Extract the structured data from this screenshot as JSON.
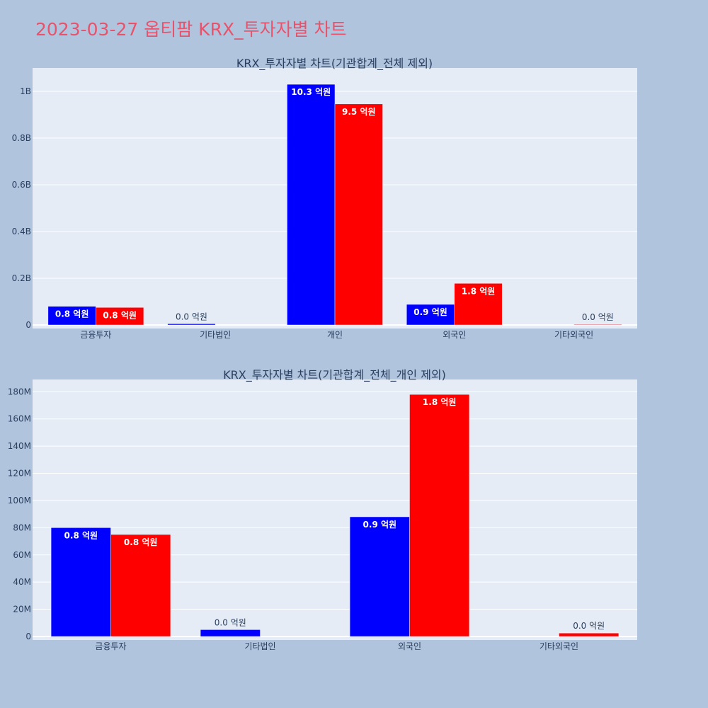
{
  "page": {
    "title": "2023-03-27 옵티팜 KRX_투자자별 차트"
  },
  "colors": {
    "background": "#b0c4de",
    "plot_bg": "#e5ecf6",
    "grid": "#ffffff",
    "title": "#e8536b",
    "text": "#2a3f5f",
    "series_a": "#0000ff",
    "series_b": "#ff0000"
  },
  "chart_data": [
    {
      "type": "bar",
      "title": "KRX_투자자별 차트(기관합계_전체 제외)",
      "categories": [
        "금융투자",
        "기타법인",
        "개인",
        "외국인",
        "기타외국인"
      ],
      "ylim": [
        0,
        1100000000
      ],
      "yticks": [
        0,
        200000000,
        400000000,
        600000000,
        800000000,
        1000000000
      ],
      "ytick_labels": [
        "0",
        "0.2B",
        "0.4B",
        "0.6B",
        "0.8B",
        "1B"
      ],
      "grid": true,
      "series": [
        {
          "color": "#0000ff",
          "values": [
            80000000,
            5000000,
            1030000000,
            88000000,
            0
          ],
          "labels": [
            "0.8 억원",
            "0.0 억원",
            "10.3 억원",
            "0.9 억원",
            ""
          ]
        },
        {
          "color": "#ff0000",
          "values": [
            75000000,
            0,
            946000000,
            178000000,
            2500000
          ],
          "labels": [
            "0.8 억원",
            "",
            "9.5 억원",
            "1.8 억원",
            "0.0 억원"
          ]
        }
      ]
    },
    {
      "type": "bar",
      "title": "KRX_투자자별 차트(기관합계_전체_개인 제외)",
      "categories": [
        "금융투자",
        "기타법인",
        "외국인",
        "기타외국인"
      ],
      "ylim": [
        0,
        189000000
      ],
      "yticks": [
        0,
        20000000,
        40000000,
        60000000,
        80000000,
        100000000,
        120000000,
        140000000,
        160000000,
        180000000
      ],
      "ytick_labels": [
        "0",
        "20M",
        "40M",
        "60M",
        "80M",
        "100M",
        "120M",
        "140M",
        "160M",
        "180M"
      ],
      "grid": true,
      "series": [
        {
          "color": "#0000ff",
          "values": [
            80000000,
            5000000,
            88000000,
            0
          ],
          "labels": [
            "0.8 억원",
            "0.0 억원",
            "0.9 억원",
            ""
          ]
        },
        {
          "color": "#ff0000",
          "values": [
            75000000,
            0,
            178000000,
            2500000
          ],
          "labels": [
            "0.8 억원",
            "",
            "1.8 억원",
            "0.0 억원"
          ]
        }
      ]
    }
  ]
}
